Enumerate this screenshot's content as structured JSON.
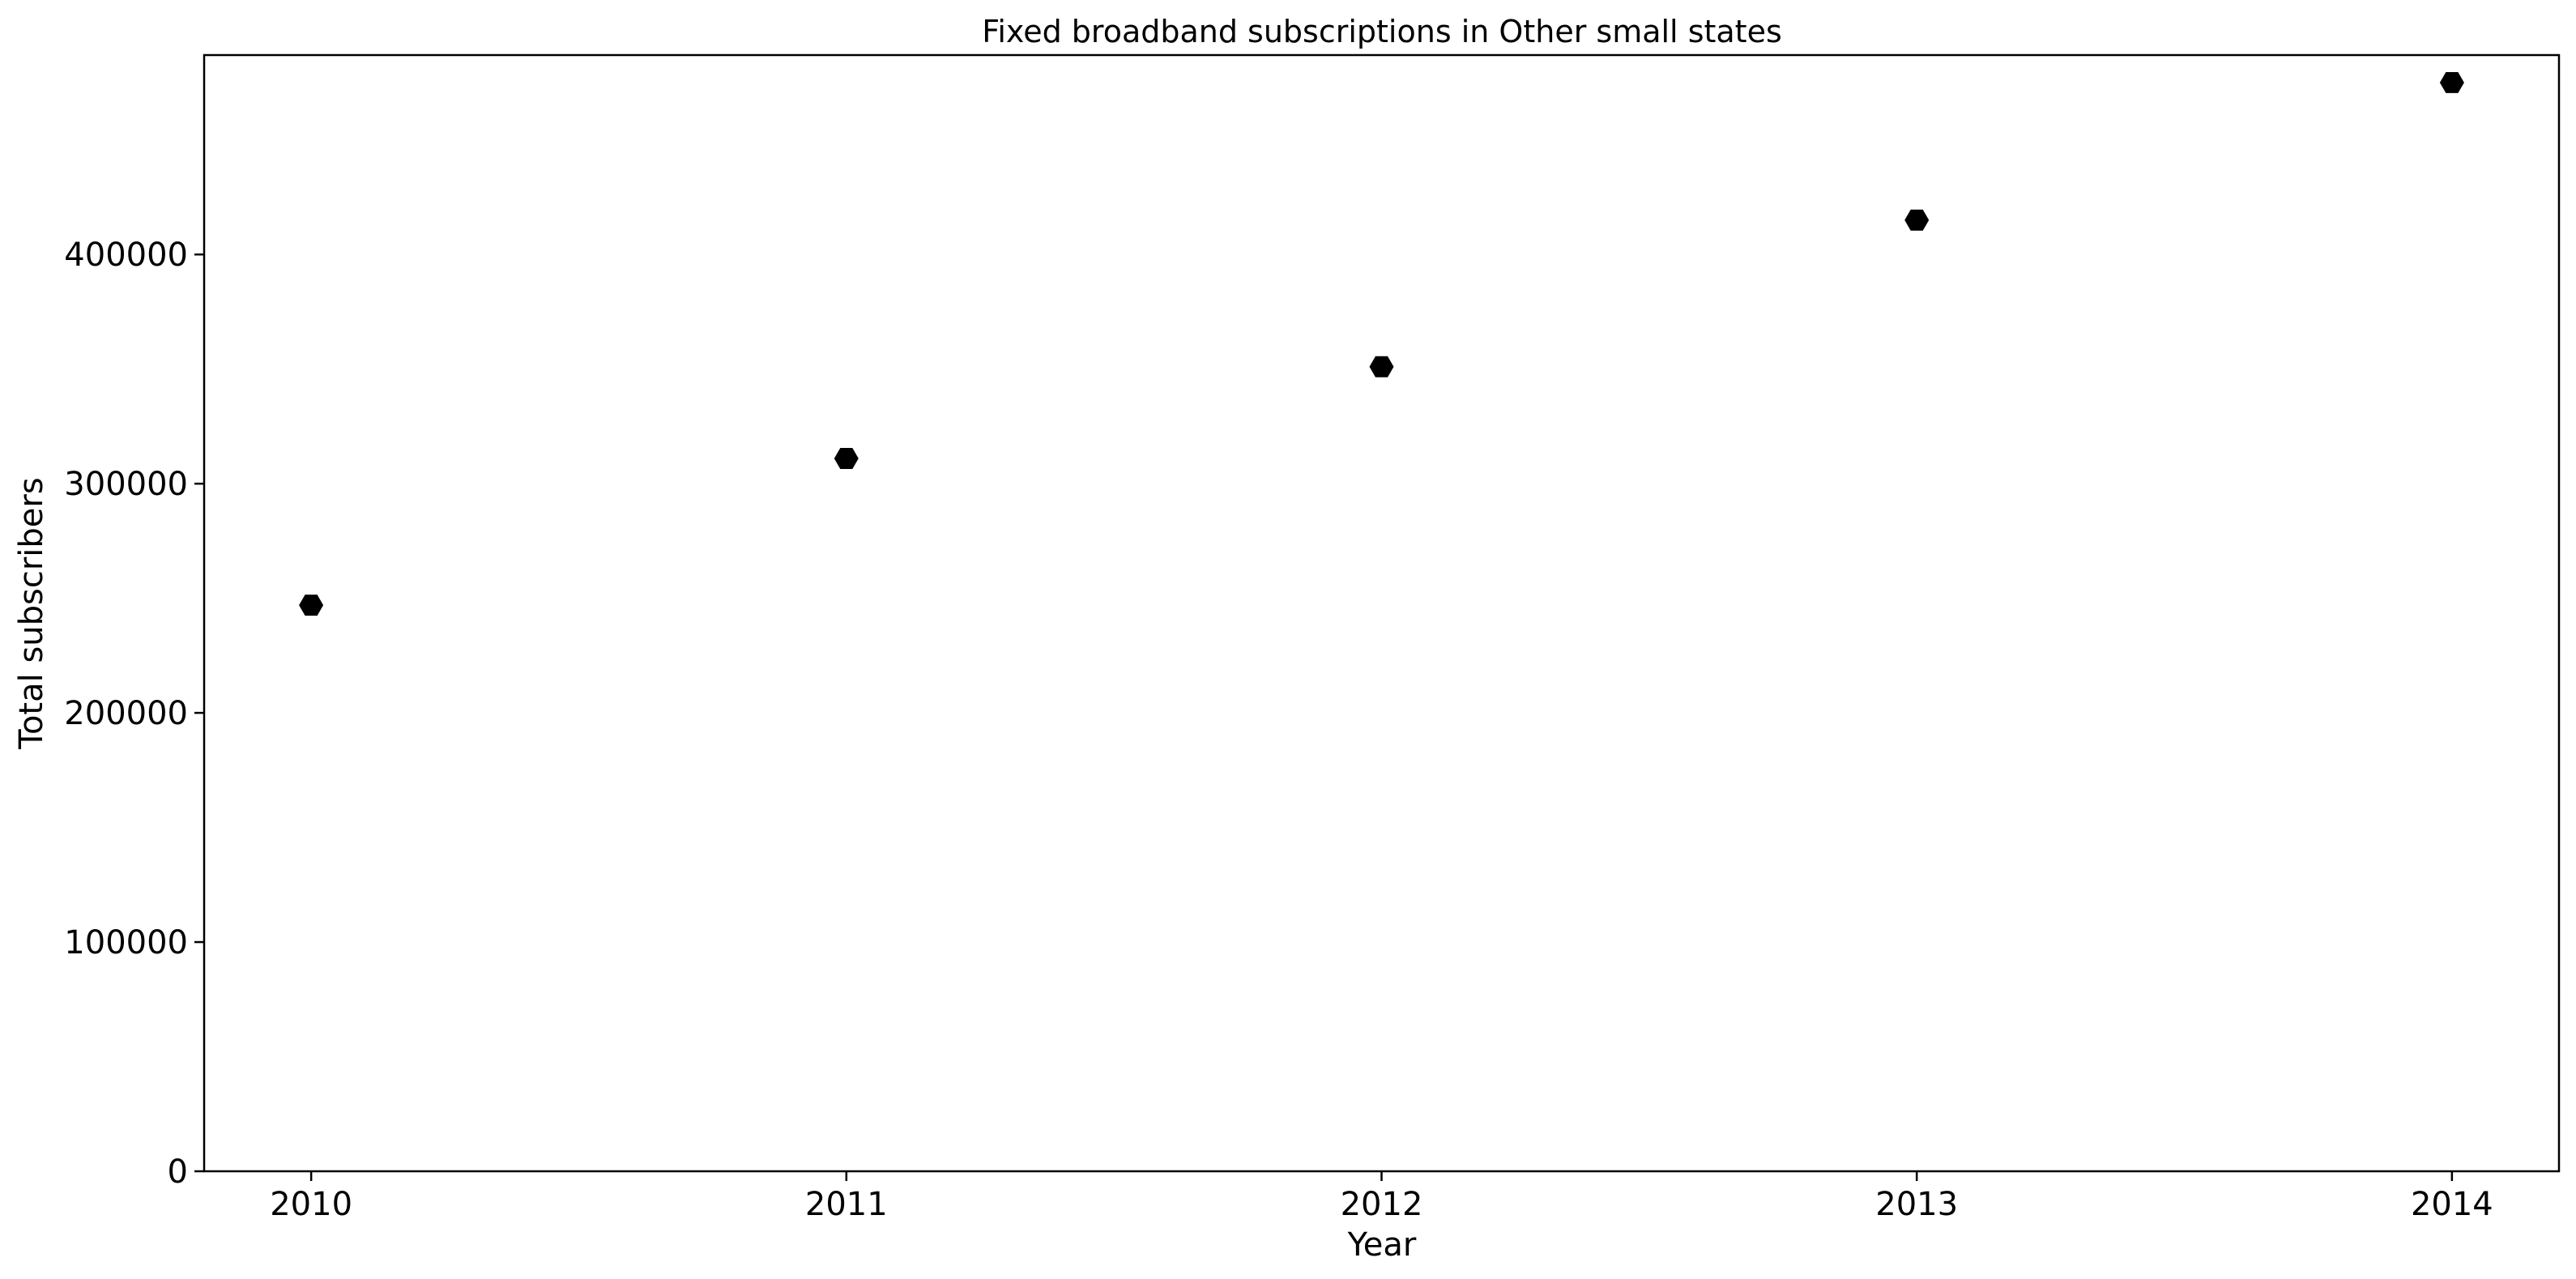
{
  "chart_data": {
    "type": "scatter",
    "title": "Fixed broadband subscriptions in Other small states",
    "xlabel": "Year",
    "ylabel": "Total subscribers",
    "x": [
      2010,
      2011,
      2012,
      2013,
      2014
    ],
    "y": [
      247000,
      311000,
      351000,
      415000,
      475000
    ],
    "xticks": [
      "2010",
      "2011",
      "2012",
      "2013",
      "2014"
    ],
    "yticks": [
      "0",
      "100000",
      "200000",
      "300000",
      "400000"
    ],
    "xlim": [
      2009.8,
      2014.2
    ],
    "ylim": [
      0,
      487000
    ],
    "marker": "hexagon",
    "marker_color": "#000000",
    "grid": false,
    "legend": "none"
  }
}
